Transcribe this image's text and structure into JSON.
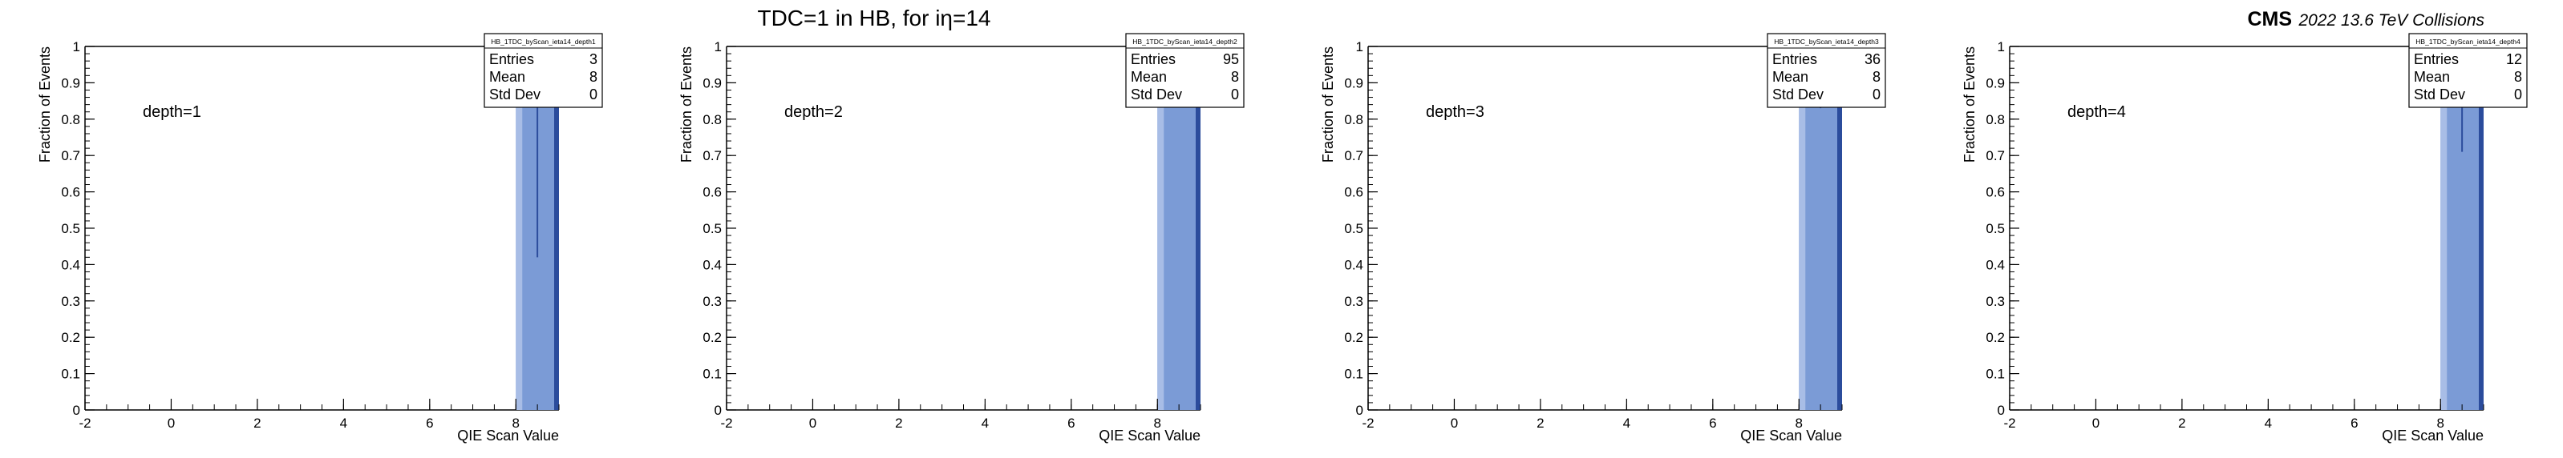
{
  "title": "TDC=1 in HB, for iη=14",
  "experiment": "CMS",
  "energy_label": "2022 13.6 TeV Collisions",
  "colors": {
    "fill": "#7b9bd6",
    "fill_light": "#a8bde6",
    "edge": "#2b4c9c",
    "axis": "#000000"
  },
  "chart_data": [
    {
      "type": "bar",
      "stats_name": "HB_1TDC_byScan_ieta14_depth1",
      "annotation": "depth=1",
      "xlabel": "QIE Scan Value",
      "ylabel": "Fraction of Events",
      "xlim": [
        -2,
        9
      ],
      "ylim": [
        0,
        1
      ],
      "x_ticks": [
        -2,
        0,
        2,
        4,
        6,
        8
      ],
      "y_ticks": [
        0,
        0.1,
        0.2,
        0.3,
        0.4,
        0.5,
        0.6,
        0.7,
        0.8,
        0.9,
        1
      ],
      "bins": [
        {
          "x_low": 8,
          "x_high": 9,
          "value": 1.0,
          "error": 0.58
        }
      ],
      "stats": [
        {
          "label": "Entries",
          "value": "3"
        },
        {
          "label": "Mean",
          "value": "8"
        },
        {
          "label": "Std Dev",
          "value": "0"
        }
      ]
    },
    {
      "type": "bar",
      "stats_name": "HB_1TDC_byScan_ieta14_depth2",
      "annotation": "depth=2",
      "xlabel": "QIE Scan Value",
      "ylabel": "Fraction of Events",
      "xlim": [
        -2,
        9
      ],
      "ylim": [
        0,
        1
      ],
      "x_ticks": [
        -2,
        0,
        2,
        4,
        6,
        8
      ],
      "y_ticks": [
        0,
        0.1,
        0.2,
        0.3,
        0.4,
        0.5,
        0.6,
        0.7,
        0.8,
        0.9,
        1
      ],
      "bins": [
        {
          "x_low": 8,
          "x_high": 9,
          "value": 1.0,
          "error": 0.1
        }
      ],
      "stats": [
        {
          "label": "Entries",
          "value": "95"
        },
        {
          "label": "Mean",
          "value": "8"
        },
        {
          "label": "Std Dev",
          "value": "0"
        }
      ]
    },
    {
      "type": "bar",
      "stats_name": "HB_1TDC_byScan_ieta14_depth3",
      "annotation": "depth=3",
      "xlabel": "QIE Scan Value",
      "ylabel": "Fraction of Events",
      "xlim": [
        -2,
        9
      ],
      "ylim": [
        0,
        1
      ],
      "x_ticks": [
        -2,
        0,
        2,
        4,
        6,
        8
      ],
      "y_ticks": [
        0,
        0.1,
        0.2,
        0.3,
        0.4,
        0.5,
        0.6,
        0.7,
        0.8,
        0.9,
        1
      ],
      "bins": [
        {
          "x_low": 8,
          "x_high": 9,
          "value": 1.0,
          "error": 0.17
        }
      ],
      "stats": [
        {
          "label": "Entries",
          "value": "36"
        },
        {
          "label": "Mean",
          "value": "8"
        },
        {
          "label": "Std Dev",
          "value": "0"
        }
      ]
    },
    {
      "type": "bar",
      "stats_name": "HB_1TDC_byScan_ieta14_depth4",
      "annotation": "depth=4",
      "xlabel": "QIE Scan Value",
      "ylabel": "Fraction of Events",
      "xlim": [
        -2,
        9
      ],
      "ylim": [
        0,
        1
      ],
      "x_ticks": [
        -2,
        0,
        2,
        4,
        6,
        8
      ],
      "y_ticks": [
        0,
        0.1,
        0.2,
        0.3,
        0.4,
        0.5,
        0.6,
        0.7,
        0.8,
        0.9,
        1
      ],
      "bins": [
        {
          "x_low": 8,
          "x_high": 9,
          "value": 1.0,
          "error": 0.29
        }
      ],
      "stats": [
        {
          "label": "Entries",
          "value": "12"
        },
        {
          "label": "Mean",
          "value": "8"
        },
        {
          "label": "Std Dev",
          "value": "0"
        }
      ]
    }
  ]
}
